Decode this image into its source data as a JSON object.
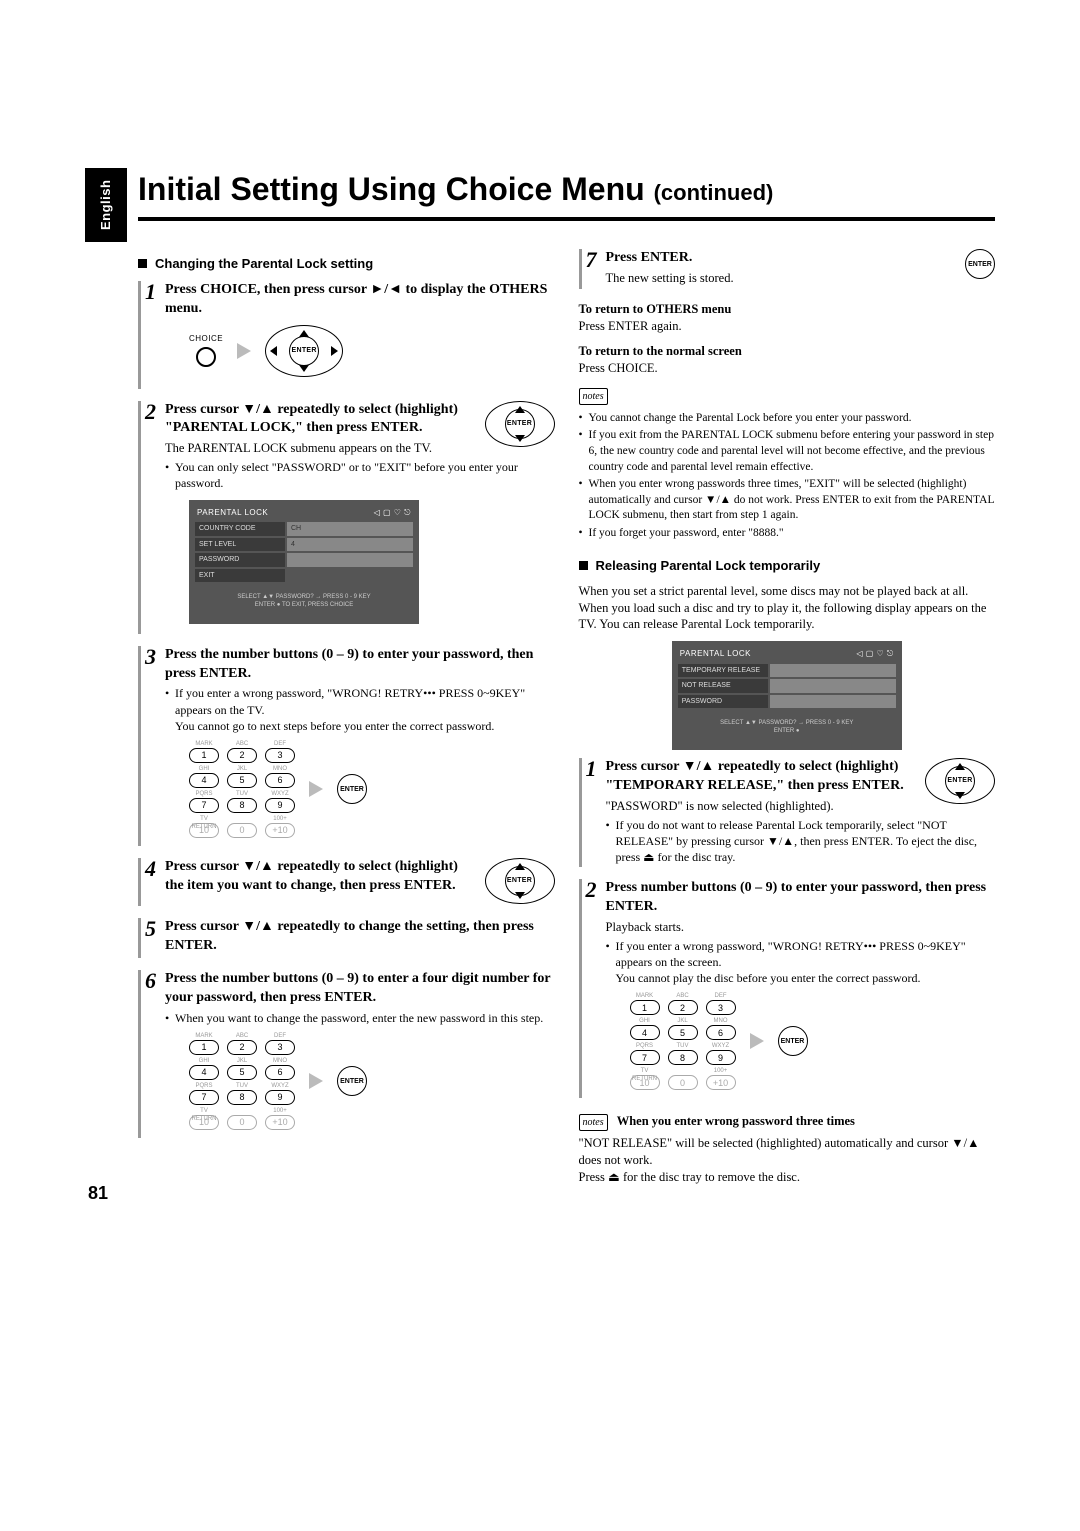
{
  "lang_tab": "English",
  "page_title_main": "Initial Setting Using Choice Menu",
  "page_title_cont": "(continued)",
  "page_number": "81",
  "enter_label": "ENTER",
  "choice_label": "CHOICE",
  "left": {
    "section1_title": "Changing the Parental Lock setting",
    "step1": {
      "n": "1",
      "head": "Press CHOICE, then press cursor ►/◄ to display the OTHERS menu."
    },
    "step2": {
      "n": "2",
      "head": "Press cursor ▼/▲ repeatedly to select (highlight) \"PARENTAL LOCK,\" then press ENTER.",
      "body": "The PARENTAL LOCK submenu appears on the TV.",
      "bullet": "You can only select \"PASSWORD\" or to \"EXIT\" before you enter your password."
    },
    "tv1": {
      "title": "PARENTAL LOCK",
      "rows": [
        {
          "lab": "COUNTRY CODE",
          "val": "CH"
        },
        {
          "lab": "SET LEVEL",
          "val": "4"
        },
        {
          "lab": "PASSWORD",
          "val": ""
        },
        {
          "lab": "EXIT",
          "val": ""
        }
      ],
      "hint1": "SELECT ▲▼   PASSWORD? → PRESS 0 - 9 KEY",
      "hint2": "ENTER ●     TO EXIT, PRESS CHOICE"
    },
    "step3": {
      "n": "3",
      "head": "Press the number buttons (0 – 9) to enter your password, then press ENTER.",
      "bullet": "If you enter a wrong password, \"WRONG! RETRY••• PRESS 0~9KEY\" appears on the TV.",
      "sub": "You cannot go to next steps before you enter the correct password."
    },
    "step4": {
      "n": "4",
      "head": "Press cursor ▼/▲ repeatedly to select (highlight) the item you want to change, then press ENTER."
    },
    "step5": {
      "n": "5",
      "head": "Press cursor ▼/▲ repeatedly to change the setting, then press ENTER."
    },
    "step6": {
      "n": "6",
      "head": "Press the number buttons (0 – 9) to enter a four digit number for your password, then press ENTER.",
      "bullet": "When you want to change the password, enter the new password in this step."
    },
    "keypad": {
      "labs": [
        "MARK",
        "ABC",
        "DEF",
        "GHI",
        "JKL",
        "MNO",
        "PQRS",
        "TUV",
        "WXYZ",
        "TV RETURN",
        "",
        "100+"
      ],
      "keys": [
        "1",
        "2",
        "3",
        "4",
        "5",
        "6",
        "7",
        "8",
        "9",
        "10",
        "0",
        "+10"
      ]
    }
  },
  "right": {
    "step7": {
      "n": "7",
      "head": "Press ENTER.",
      "body": "The new setting is stored."
    },
    "return_others_h": "To return to OTHERS menu",
    "return_others_b": "Press ENTER again.",
    "return_normal_h": "To return to the normal screen",
    "return_normal_b": "Press CHOICE.",
    "notes1": [
      "You cannot change the Parental Lock before you enter your password.",
      "If you exit from the PARENTAL LOCK submenu before entering your password in step 6, the new country code and parental level will not become effective, and the previous country code and parental level remain effective.",
      "When you enter wrong passwords three times, \"EXIT\" will be selected (highlight) automatically and cursor ▼/▲ do not work. Press ENTER to exit from the PARENTAL LOCK submenu, then start from step 1 again.",
      "If you forget your password, enter \"8888.\""
    ],
    "section2_title": "Releasing Parental Lock temporarily",
    "section2_intro": "When you set a strict parental level, some discs may not be played back at all. When you load such a disc and try to play it, the following display appears on the TV.  You can release Parental Lock temporarily.",
    "tv2": {
      "title": "PARENTAL LOCK",
      "rows": [
        {
          "lab": "TEMPORARY RELEASE",
          "val": ""
        },
        {
          "lab": "NOT RELEASE",
          "val": ""
        },
        {
          "lab": "PASSWORD",
          "val": ""
        }
      ],
      "hint1": "SELECT ▲▼   PASSWORD? → PRESS 0 - 9 KEY",
      "hint2": "ENTER ●"
    },
    "tstep1": {
      "n": "1",
      "head": "Press cursor ▼/▲ repeatedly to select (highlight) \"TEMPORARY RELEASE,\" then press ENTER.",
      "body": "\"PASSWORD\" is now selected (highlighted).",
      "bullet": "If you do not want to release Parental Lock temporarily, select \"NOT RELEASE\" by pressing cursor ▼/▲, then press ENTER. To eject the disc, press ⏏ for the disc tray."
    },
    "tstep2": {
      "n": "2",
      "head": "Press number buttons (0 – 9) to enter your password, then press ENTER.",
      "body": "Playback starts.",
      "bullet": "If you enter a wrong password, \"WRONG! RETRY••• PRESS 0~9KEY\" appears on the screen.",
      "sub": "You cannot play the disc before you enter the correct password."
    },
    "notes2_title": "When you enter wrong password three times",
    "notes2_body1": "\"NOT RELEASE\" will be selected (highlighted) automatically and cursor ▼/▲ does not work.",
    "notes2_body2": "Press ⏏ for the disc tray to remove the disc."
  }
}
